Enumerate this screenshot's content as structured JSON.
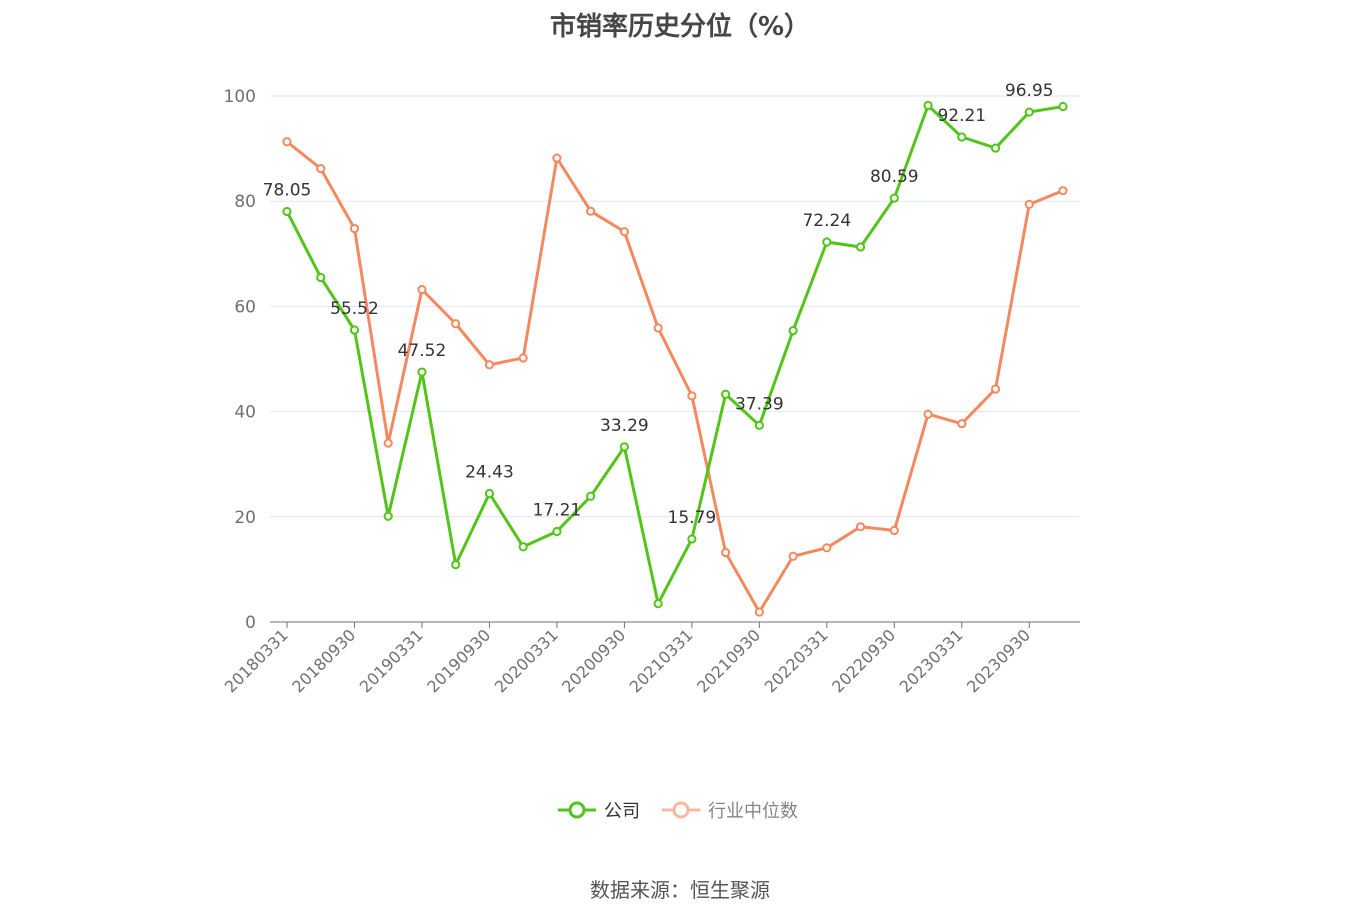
{
  "title": "市销率历史分位（%）",
  "source": "数据来源：恒生聚源",
  "colors": {
    "company": "#52c41a",
    "industry": "#f4895f",
    "grid": "#e0e6f1",
    "axis": "#6e7079"
  },
  "chart_data": {
    "type": "line",
    "title": "市销率历史分位（%）",
    "ylim": [
      0,
      100
    ],
    "yticks": [
      0,
      20,
      40,
      60,
      80,
      100
    ],
    "grid": true,
    "legend_position": "bottom",
    "x": [
      "20180331",
      "20180630",
      "20180930",
      "20181231",
      "20190331",
      "20190630",
      "20190930",
      "20191231",
      "20200331",
      "20200630",
      "20200930",
      "20201231",
      "20210331",
      "20210630",
      "20210930",
      "20211231",
      "20220331",
      "20220630",
      "20220930",
      "20221231",
      "20230331",
      "20230630",
      "20230930",
      "20231231"
    ],
    "x_tick_labels": [
      "20180331",
      "20180930",
      "20190331",
      "20190930",
      "20200331",
      "20200930",
      "20210331",
      "20210930",
      "20220331",
      "20220930",
      "20230331",
      "20230930"
    ],
    "series": [
      {
        "name": "公司",
        "values": [
          78.05,
          65.5,
          55.52,
          20.1,
          47.52,
          10.9,
          24.43,
          14.3,
          17.21,
          23.9,
          33.29,
          3.5,
          15.79,
          43.3,
          37.39,
          55.4,
          72.24,
          71.3,
          80.59,
          98.2,
          92.21,
          90.1,
          96.95,
          98.0
        ],
        "labels": {
          "0": "78.05",
          "2": "55.52",
          "4": "47.52",
          "6": "24.43",
          "8": "17.21",
          "10": "33.29",
          "12": "15.79",
          "14": "37.39",
          "16": "72.24",
          "18": "80.59",
          "20": "92.21",
          "22": "96.95"
        }
      },
      {
        "name": "行业中位数",
        "values": [
          91.3,
          86.2,
          74.8,
          34.0,
          63.2,
          56.7,
          48.9,
          50.2,
          88.2,
          78.1,
          74.2,
          55.9,
          43.0,
          13.2,
          1.9,
          12.5,
          14.1,
          18.1,
          17.4,
          39.5,
          37.7,
          44.3,
          79.4,
          82.0
        ]
      }
    ]
  }
}
